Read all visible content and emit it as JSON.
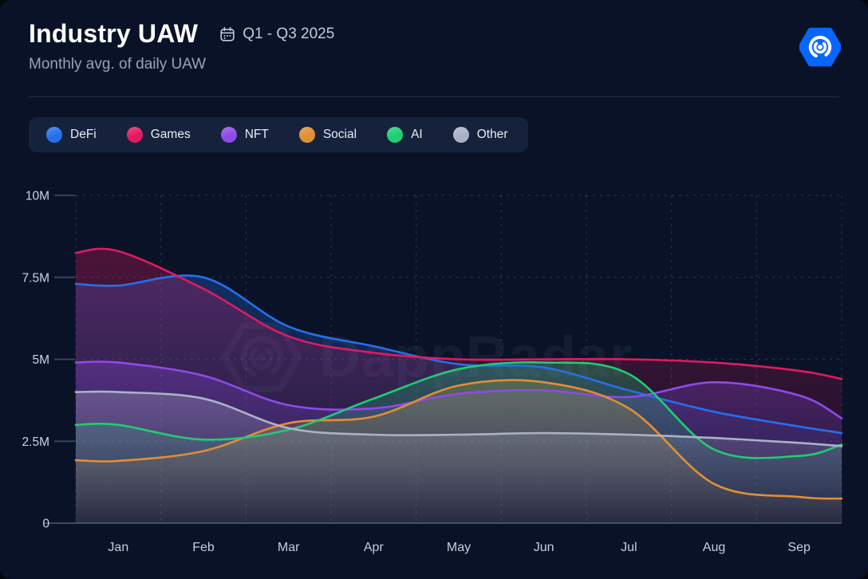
{
  "header": {
    "title": "Industry UAW",
    "subtitle": "Monthly avg. of daily UAW",
    "date_range": "Q1 - Q3 2025"
  },
  "watermark": {
    "text": "DappRadar"
  },
  "colors": {
    "background": "#0a1228",
    "legend_background": "#16213c",
    "divider": "#26304f",
    "axis_label": "#c6ceda",
    "grid": "rgba(150,165,200,0.22)",
    "baseline": "#3c466a",
    "logo_blue": "#0866ff"
  },
  "chart_data": {
    "type": "line",
    "title": "Industry UAW",
    "subtitle": "Monthly avg. of daily UAW",
    "period": "Q1 - Q3 2025",
    "unit": "UAW, millions (monthly avg. of daily UAW)",
    "x_categories": [
      "Jan",
      "Feb",
      "Mar",
      "Apr",
      "May",
      "Jun",
      "Jul",
      "Aug",
      "Sep"
    ],
    "y_tick_labels": [
      "0",
      "2.5M",
      "5M",
      "7.5M",
      "10M"
    ],
    "y_tick_values_m": [
      0,
      2.5,
      5,
      7.5,
      10
    ],
    "ylim_m": [
      0,
      10
    ],
    "grid": "dashed",
    "curve": "smooth",
    "legend_position": "top-left",
    "series": [
      {
        "name": "DeFi",
        "color": "#2570e9",
        "values_m": [
          7.25,
          7.5,
          6.0,
          5.4,
          4.85,
          4.75,
          4.05,
          3.4,
          2.95
        ],
        "edge_values_m": [
          7.3,
          2.75
        ]
      },
      {
        "name": "Games",
        "color": "#e21a60",
        "values_m": [
          8.3,
          7.15,
          5.7,
          5.2,
          5.0,
          5.0,
          5.0,
          4.9,
          4.65
        ],
        "edge_values_m": [
          8.25,
          4.4
        ]
      },
      {
        "name": "NFT",
        "color": "#8f4ae8",
        "values_m": [
          4.9,
          4.5,
          3.6,
          3.5,
          3.95,
          4.05,
          3.85,
          4.3,
          3.9
        ],
        "edge_values_m": [
          4.9,
          3.2
        ]
      },
      {
        "name": "Social",
        "color": "#e08f33",
        "values_m": [
          1.9,
          2.2,
          3.05,
          3.25,
          4.2,
          4.3,
          3.5,
          1.2,
          0.8
        ],
        "edge_values_m": [
          1.92,
          0.75
        ]
      },
      {
        "name": "AI",
        "color": "#1fcd74",
        "values_m": [
          3.0,
          2.55,
          2.85,
          3.8,
          4.7,
          4.9,
          4.55,
          2.25,
          2.05
        ],
        "edge_values_m": [
          3.0,
          2.4
        ]
      },
      {
        "name": "Other",
        "color": "#aab3c5",
        "values_m": [
          4.0,
          3.8,
          2.9,
          2.7,
          2.7,
          2.75,
          2.7,
          2.6,
          2.45
        ],
        "edge_values_m": [
          4.0,
          2.35
        ]
      }
    ]
  }
}
